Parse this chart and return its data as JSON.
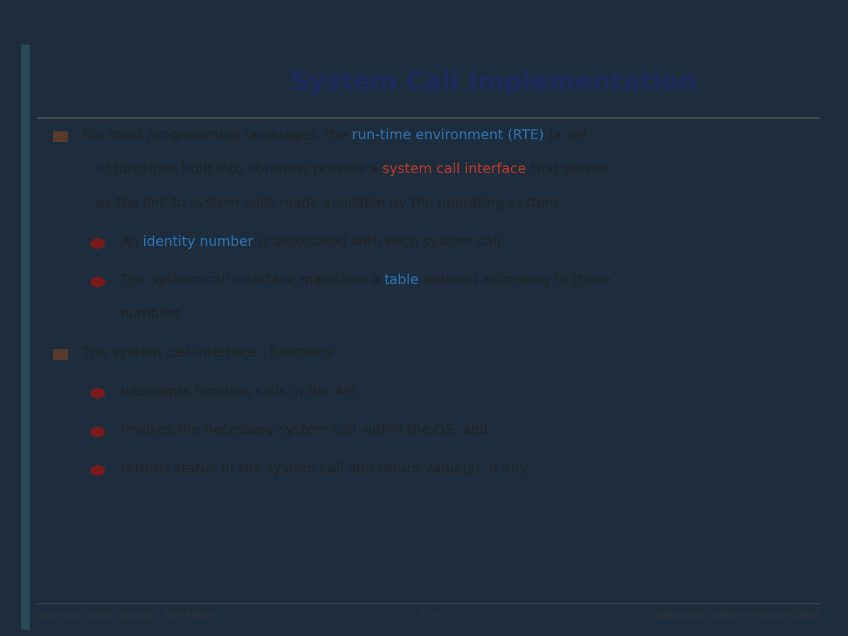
{
  "title": "System Call Implementation",
  "title_color": "#1c2b5e",
  "title_fontsize": 26,
  "bg_color": "#cfc9bb",
  "outer_bg": "#1e2d3d",
  "left_strip_color": "#2a4a5a",
  "header_line_color": "#555555",
  "footer_left": "Operating System Concepts – 10th Edition",
  "footer_center": "2.18",
  "footer_right": "Silberschatz, Galvin and Gagne ©2018",
  "footer_color": "#333333",
  "footer_fontsize": 8.5,
  "bullet_square_color": "#5a3a2a",
  "bullet_circle_color": "#7a1a1a",
  "content_fontsize": 14,
  "content": [
    {
      "type": "square_bullet",
      "lines": [
        [
          {
            "text": "For most programming languages, the ",
            "color": "#222222"
          },
          {
            "text": "run-time environment (RTE)",
            "color": "#2e75b6"
          },
          {
            "text": " (a set",
            "color": "#222222"
          }
        ],
        [
          {
            "text": "of functions built into libraries) provide a ",
            "color": "#222222"
          },
          {
            "text": "system call interface",
            "color": "#c0392b"
          },
          {
            "text": " that serves",
            "color": "#222222"
          }
        ],
        [
          {
            "text": "as the link to system calls made available by the operating system",
            "color": "#222222"
          }
        ]
      ]
    },
    {
      "type": "circle_bullet",
      "lines": [
        [
          {
            "text": "An ",
            "color": "#222222"
          },
          {
            "text": "identity number",
            "color": "#2e75b6"
          },
          {
            "text": " is associated with each system call",
            "color": "#222222"
          }
        ]
      ]
    },
    {
      "type": "circle_bullet",
      "lines": [
        [
          {
            "text": "The system-call interface maintains a ",
            "color": "#222222"
          },
          {
            "text": "table",
            "color": "#2e75b6"
          },
          {
            "text": " indexed according to these",
            "color": "#222222"
          }
        ],
        [
          {
            "text": "numbers",
            "color": "#222222"
          }
        ]
      ]
    },
    {
      "type": "square_bullet",
      "lines": [
        [
          {
            "text": "The system call interface - functions",
            "color": "#222222"
          }
        ]
      ]
    },
    {
      "type": "circle_bullet",
      "lines": [
        [
          {
            "text": "intercepts function calls in the API",
            "color": "#222222"
          }
        ]
      ]
    },
    {
      "type": "circle_bullet",
      "lines": [
        [
          {
            "text": "invokes the necessary system call within the OS, and",
            "color": "#222222"
          }
        ]
      ]
    },
    {
      "type": "circle_bullet",
      "lines": [
        [
          {
            "text": "returns status of the system call and return value(s), if any",
            "color": "#222222"
          }
        ]
      ]
    }
  ]
}
